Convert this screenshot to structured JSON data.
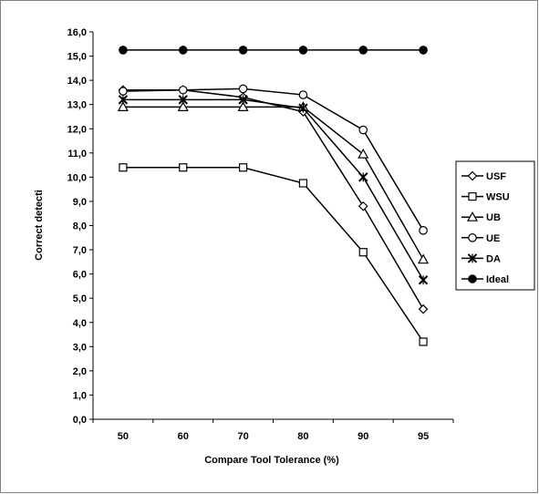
{
  "chart_data": {
    "type": "line",
    "title": "",
    "xlabel": "Compare Tool Tolerance (%)",
    "ylabel": "Correct detecti",
    "categories": [
      "50",
      "60",
      "70",
      "80",
      "90",
      "95"
    ],
    "ylim": [
      0,
      16
    ],
    "ytick_step": 1,
    "ytick_labels": [
      "0,0",
      "1,0",
      "2,0",
      "3,0",
      "4,0",
      "5,0",
      "6,0",
      "7,0",
      "8,0",
      "9,0",
      "10,0",
      "11,0",
      "12,0",
      "13,0",
      "14,0",
      "15,0",
      "16,0"
    ],
    "grid": false,
    "legend_position": "right",
    "series": [
      {
        "name": "USF",
        "marker": "diamond",
        "values": [
          13.6,
          13.6,
          13.3,
          12.7,
          8.8,
          4.55
        ]
      },
      {
        "name": "WSU",
        "marker": "square",
        "values": [
          10.4,
          10.4,
          10.4,
          9.75,
          6.9,
          3.2
        ]
      },
      {
        "name": "UB",
        "marker": "triangle",
        "values": [
          12.9,
          12.9,
          12.9,
          12.9,
          10.95,
          6.6
        ]
      },
      {
        "name": "UE",
        "marker": "circle",
        "values": [
          13.55,
          13.6,
          13.65,
          13.4,
          11.95,
          7.8
        ]
      },
      {
        "name": "DA",
        "marker": "star",
        "values": [
          13.2,
          13.2,
          13.2,
          12.85,
          10.0,
          5.75
        ]
      },
      {
        "name": "Ideal",
        "marker": "dot",
        "values": [
          15.25,
          15.25,
          15.25,
          15.25,
          15.25,
          15.25
        ]
      }
    ],
    "colors": {
      "line": "#000000",
      "background": "#ffffff",
      "frame": "#808080"
    }
  }
}
